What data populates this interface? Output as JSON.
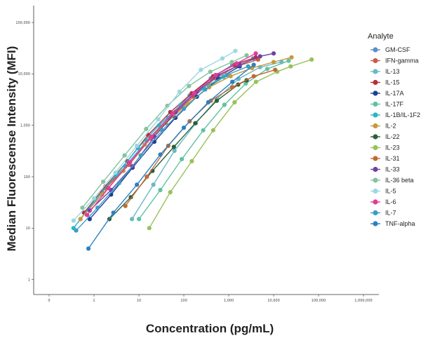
{
  "chart_data": {
    "type": "line",
    "title": "",
    "xlabel": "Concentration (pg/mL)",
    "ylabel": "Median Fluorescense Intensity (MFI)",
    "x_scale": "log",
    "y_scale": "log",
    "xlim": [
      0.1,
      1000000
    ],
    "ylim": [
      0.7,
      200000
    ],
    "x_ticks": [
      {
        "value": 0.1,
        "label": "0"
      },
      {
        "value": 1,
        "label": "1"
      },
      {
        "value": 10,
        "label": "10"
      },
      {
        "value": 100,
        "label": "100"
      },
      {
        "value": 1000,
        "label": "1,000"
      },
      {
        "value": 10000,
        "label": "10,000"
      },
      {
        "value": 100000,
        "label": "100,000"
      },
      {
        "value": 1000000,
        "label": "1,000,000"
      }
    ],
    "y_ticks": [
      {
        "value": 1,
        "label": "1"
      },
      {
        "value": 10,
        "label": "10"
      },
      {
        "value": 100,
        "label": "100"
      },
      {
        "value": 1000,
        "label": "1,000"
      },
      {
        "value": 10000,
        "label": "10,000"
      },
      {
        "value": 100000,
        "label": "100,000"
      }
    ],
    "grid": false,
    "legend_title": "Analyte",
    "legend_position": "right",
    "series": [
      {
        "name": "GM-CSF",
        "color": "#5b8fd0",
        "x": [
          0.5,
          1.5,
          5,
          15,
          45,
          135,
          400,
          1200,
          3500
        ],
        "y": [
          15,
          50,
          160,
          500,
          1400,
          3800,
          8200,
          15000,
          20000
        ]
      },
      {
        "name": "IFN-gamma",
        "color": "#c95a49",
        "x": [
          0.6,
          1.8,
          6,
          18,
          55,
          165,
          500,
          1500,
          4500
        ],
        "y": [
          20,
          60,
          170,
          550,
          1500,
          3600,
          8200,
          14000,
          19000
        ]
      },
      {
        "name": "IL-13",
        "color": "#6bb8c4",
        "x": [
          7,
          21,
          62,
          185,
          550,
          1650,
          5000,
          15000
        ],
        "y": [
          15,
          70,
          320,
          1100,
          3300,
          8000,
          13500,
          17000
        ]
      },
      {
        "name": "IL-15",
        "color": "#b5303f",
        "x": [
          0.6,
          1.8,
          5.5,
          16,
          50,
          150,
          450,
          1350,
          4000
        ],
        "y": [
          20,
          65,
          200,
          650,
          1800,
          4200,
          9000,
          15000,
          21000
        ]
      },
      {
        "name": "IL-17A",
        "color": "#1f3f95",
        "x": [
          0.8,
          2.4,
          7.2,
          22,
          65,
          195,
          585,
          1750
        ],
        "y": [
          15,
          45,
          150,
          480,
          1400,
          3600,
          8000,
          14000
        ]
      },
      {
        "name": "IL-17F",
        "color": "#5fc3a0",
        "x": [
          10,
          30,
          90,
          270,
          800,
          2400,
          7200,
          21600
        ],
        "y": [
          15,
          55,
          220,
          800,
          2500,
          6500,
          12500,
          18000
        ]
      },
      {
        "name": "IL-1B/IL-1F2",
        "color": "#2bb5c2",
        "x": [
          0.35,
          1.05,
          3.15,
          9.5,
          28,
          85,
          255,
          765
        ],
        "y": [
          10,
          35,
          110,
          360,
          1000,
          2500,
          5200,
          8800
        ]
      },
      {
        "name": "IL-2",
        "color": "#c49a3a",
        "x": [
          0.5,
          1.5,
          4.5,
          13.5,
          40,
          120,
          365,
          1100,
          3300,
          10000,
          25000
        ],
        "y": [
          15,
          45,
          130,
          420,
          1100,
          2600,
          5500,
          9000,
          13000,
          17000,
          21000
        ]
      },
      {
        "name": "IL-22",
        "color": "#2c5f3a",
        "x": [
          2.2,
          6.6,
          20,
          60,
          180,
          540,
          1620,
          2500
        ],
        "y": [
          15,
          40,
          130,
          380,
          1100,
          3000,
          6200,
          7500
        ]
      },
      {
        "name": "IL-23",
        "color": "#97c15c",
        "x": [
          17,
          50,
          150,
          450,
          1350,
          4050,
          12000,
          24000,
          70000
        ],
        "y": [
          10,
          50,
          200,
          800,
          2800,
          7000,
          11000,
          14000,
          19000
        ]
      },
      {
        "name": "IL-31",
        "color": "#c26a35",
        "x": [
          5,
          15,
          45,
          135,
          400,
          1200,
          3600,
          10800
        ],
        "y": [
          27,
          100,
          400,
          1200,
          3000,
          5500,
          9000,
          12000
        ]
      },
      {
        "name": "IL-33",
        "color": "#6e43a0",
        "x": [
          0.8,
          2.4,
          7.2,
          22,
          65,
          195,
          585,
          1750,
          5000,
          10000
        ],
        "y": [
          22,
          55,
          160,
          600,
          1800,
          4500,
          9500,
          15000,
          22000,
          25000
        ]
      },
      {
        "name": "IL-36 beta",
        "color": "#84c49e",
        "x": [
          0.55,
          1.6,
          4.8,
          14.5,
          43,
          130,
          390,
          1170,
          2500
        ],
        "y": [
          25,
          80,
          260,
          850,
          2400,
          5800,
          11000,
          17000,
          23000
        ]
      },
      {
        "name": "IL-5",
        "color": "#9dd7e3",
        "x": [
          0.35,
          1,
          3,
          9,
          27,
          80,
          240,
          720,
          1400
        ],
        "y": [
          14,
          38,
          120,
          400,
          1300,
          4500,
          12000,
          20000,
          28000
        ]
      },
      {
        "name": "IL-6",
        "color": "#e5389a",
        "x": [
          0.7,
          2.1,
          6.3,
          19,
          57,
          170,
          510,
          1500,
          4000
        ],
        "y": [
          18,
          60,
          190,
          600,
          1700,
          4200,
          9500,
          16000,
          25000
        ]
      },
      {
        "name": "IL-7",
        "color": "#3d9bc6",
        "x": [
          0.4,
          1.2,
          3.6,
          11,
          33,
          100,
          300,
          900,
          2700
        ],
        "y": [
          9,
          25,
          75,
          260,
          800,
          2100,
          5000,
          9500,
          14000
        ]
      },
      {
        "name": "TNF-alpha",
        "color": "#2d7fc3",
        "x": [
          0.75,
          2.7,
          9,
          30,
          100,
          350,
          1200,
          3600
        ],
        "y": [
          4,
          20,
          70,
          270,
          900,
          2800,
          7000,
          15000
        ]
      }
    ]
  }
}
